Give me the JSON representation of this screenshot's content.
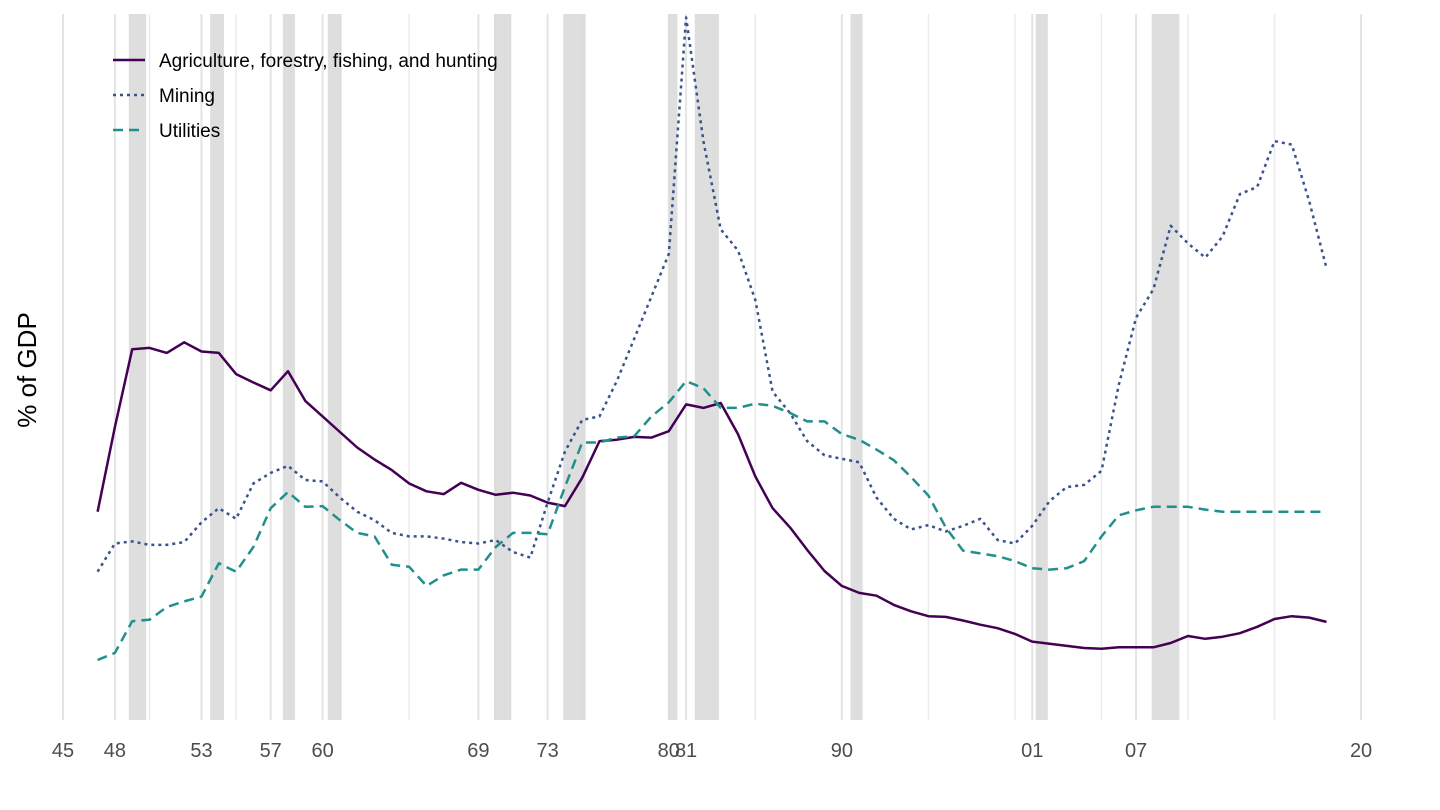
{
  "chart_data": {
    "type": "line",
    "title": "",
    "xlabel": "",
    "ylabel": "% of GDP",
    "xlim": [
      1945,
      2023
    ],
    "ylim": [
      0,
      100
    ],
    "x_tick_values": [
      1945,
      1948,
      1953,
      1957,
      1960,
      1969,
      1973,
      1980,
      1981,
      1990,
      2001,
      2007,
      2020
    ],
    "x_tick_labels": [
      "45",
      "48",
      "53",
      "57",
      "60",
      "69",
      "73",
      "80",
      "81",
      "90",
      "01",
      "07",
      "20"
    ],
    "minor_grid_years": [
      1950,
      1955,
      1965,
      1970,
      1975,
      1985,
      1995,
      2000,
      2005,
      2010,
      2015
    ],
    "recessions": [
      [
        1948.8,
        1949.8
      ],
      [
        1953.5,
        1954.3
      ],
      [
        1957.7,
        1958.4
      ],
      [
        1960.3,
        1961.1
      ],
      [
        1969.9,
        1970.9
      ],
      [
        1973.9,
        1975.2
      ],
      [
        1980.0,
        1980.5
      ],
      [
        1981.5,
        1982.9
      ],
      [
        1990.5,
        1991.2
      ],
      [
        2001.2,
        2001.9
      ],
      [
        2007.9,
        2009.5
      ]
    ],
    "legend_position": "top-left",
    "series": [
      {
        "name": "Agriculture, forestry, fishing, and hunting",
        "color": "#440154",
        "dash": "solid",
        "x": [
          1947,
          1948,
          1949,
          1950,
          1951,
          1952,
          1953,
          1954,
          1955,
          1956,
          1957,
          1958,
          1959,
          1960,
          1961,
          1962,
          1963,
          1964,
          1965,
          1966,
          1967,
          1968,
          1969,
          1970,
          1971,
          1972,
          1973,
          1974,
          1975,
          1976,
          1977,
          1978,
          1979,
          1980,
          1981,
          1982,
          1983,
          1984,
          1985,
          1986,
          1987,
          1988,
          1989,
          1990,
          1991,
          1992,
          1993,
          1994,
          1995,
          1996,
          1997,
          1998,
          1999,
          2000,
          2001,
          2002,
          2003,
          2004,
          2005,
          2006,
          2007,
          2008,
          2009,
          2010,
          2011,
          2012,
          2013,
          2014,
          2015,
          2016,
          2017,
          2018
        ],
        "values": [
          29.5,
          41.5,
          52.5,
          52.7,
          52.0,
          53.5,
          52.2,
          52.0,
          49.0,
          47.8,
          46.7,
          49.4,
          45.2,
          43.0,
          40.8,
          38.6,
          36.9,
          35.4,
          33.5,
          32.4,
          32.0,
          33.6,
          32.6,
          31.9,
          32.2,
          31.8,
          30.8,
          30.3,
          34.3,
          39.5,
          39.7,
          40.1,
          40.0,
          40.9,
          44.7,
          44.2,
          44.9,
          40.5,
          34.5,
          30.0,
          27.3,
          24.1,
          21.1,
          19.0,
          18.0,
          17.6,
          16.3,
          15.4,
          14.7,
          14.6,
          14.1,
          13.5,
          13.0,
          12.2,
          11.1,
          10.8,
          10.5,
          10.2,
          10.1,
          10.3,
          10.3,
          10.3,
          10.9,
          11.9,
          11.5,
          11.8,
          12.3,
          13.2,
          14.3,
          14.7,
          14.5,
          13.9
        ]
      },
      {
        "name": "Mining",
        "color": "#3b528b",
        "dash": "dotted",
        "x": [
          1947,
          1948,
          1949,
          1950,
          1951,
          1952,
          1953,
          1954,
          1955,
          1956,
          1957,
          1958,
          1959,
          1960,
          1961,
          1962,
          1963,
          1964,
          1965,
          1966,
          1967,
          1968,
          1969,
          1970,
          1971,
          1972,
          1973,
          1974,
          1975,
          1976,
          1977,
          1978,
          1979,
          1980,
          1981,
          1982,
          1983,
          1984,
          1985,
          1986,
          1987,
          1988,
          1989,
          1990,
          1991,
          1992,
          1993,
          1994,
          1995,
          1996,
          1997,
          1998,
          1999,
          2000,
          2001,
          2002,
          2003,
          2004,
          2005,
          2006,
          2007,
          2008,
          2009,
          2010,
          2011,
          2012,
          2013,
          2014,
          2015,
          2016,
          2017,
          2018
        ],
        "values": [
          21.0,
          25.0,
          25.3,
          24.8,
          24.8,
          25.2,
          28.0,
          30.0,
          28.5,
          33.5,
          35.0,
          36.0,
          34.0,
          33.8,
          31.5,
          29.5,
          28.3,
          26.5,
          26.0,
          26.0,
          25.7,
          25.2,
          25.0,
          25.5,
          23.8,
          23.0,
          30.8,
          38.0,
          42.5,
          43.0,
          48.0,
          54.0,
          60.0,
          66.0,
          99.5,
          82.0,
          69.5,
          66.5,
          59.5,
          46.5,
          43.5,
          39.5,
          37.5,
          37.0,
          36.5,
          31.5,
          28.5,
          27.0,
          27.6,
          26.7,
          27.5,
          28.5,
          25.5,
          25.0,
          27.5,
          31.0,
          33.0,
          33.3,
          35.3,
          47.5,
          57.0,
          61.0,
          70.0,
          67.5,
          65.5,
          68.5,
          74.5,
          75.5,
          82.0,
          81.5,
          73.5,
          64.0
        ]
      },
      {
        "name": "Utilities",
        "color": "#21908c",
        "dash": "dashed",
        "x": [
          1947,
          1948,
          1949,
          1950,
          1951,
          1952,
          1953,
          1954,
          1955,
          1956,
          1957,
          1958,
          1959,
          1960,
          1961,
          1962,
          1963,
          1964,
          1965,
          1966,
          1967,
          1968,
          1969,
          1970,
          1971,
          1972,
          1973,
          1974,
          1975,
          1976,
          1977,
          1978,
          1979,
          1980,
          1981,
          1982,
          1983,
          1984,
          1985,
          1986,
          1987,
          1988,
          1989,
          1990,
          1991,
          1992,
          1993,
          1994,
          1995,
          1996,
          1997,
          1998,
          1999,
          2000,
          2001,
          2002,
          2003,
          2004,
          2005,
          2006,
          2007,
          2008,
          2009,
          2010,
          2011,
          2012,
          2013,
          2014,
          2015,
          2016,
          2017,
          2018
        ],
        "values": [
          8.5,
          9.5,
          14.0,
          14.2,
          16.0,
          16.8,
          17.5,
          22.2,
          21.0,
          24.5,
          30.0,
          32.3,
          30.2,
          30.3,
          28.3,
          26.5,
          26.0,
          22.0,
          21.7,
          19.0,
          20.5,
          21.3,
          21.3,
          24.5,
          26.5,
          26.5,
          26.3,
          33.0,
          39.3,
          39.3,
          40.0,
          40.2,
          43.0,
          45.0,
          48.0,
          47.0,
          44.2,
          44.2,
          44.8,
          44.5,
          43.5,
          42.3,
          42.3,
          40.5,
          39.7,
          38.3,
          36.8,
          34.4,
          31.8,
          27.3,
          24.0,
          23.6,
          23.2,
          22.5,
          21.5,
          21.3,
          21.5,
          22.5,
          26.0,
          29.0,
          29.7,
          30.2,
          30.2,
          30.2,
          29.8,
          29.5,
          29.5,
          29.5,
          29.5,
          29.5,
          29.5,
          29.5
        ]
      }
    ]
  }
}
